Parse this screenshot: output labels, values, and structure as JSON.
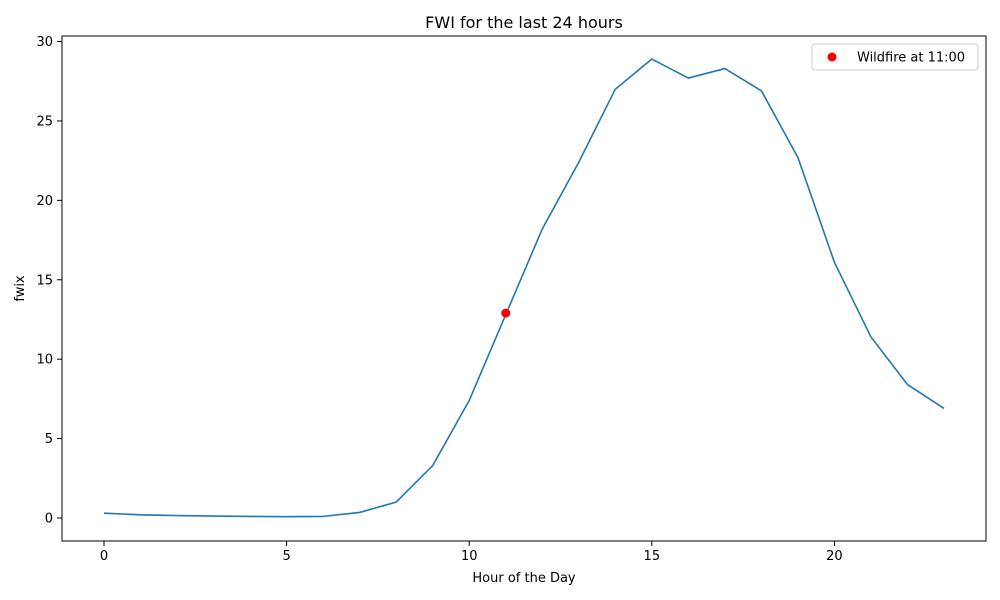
{
  "chart_data": {
    "type": "line",
    "title": "FWI for the last 24 hours",
    "xlabel": "Hour of the Day",
    "ylabel": "fwix",
    "xlim": [
      -1.15,
      24.15
    ],
    "ylim": [
      -1.45,
      30.35
    ],
    "xticks": [
      0,
      5,
      10,
      15,
      20
    ],
    "yticks": [
      0,
      5,
      10,
      15,
      20,
      25,
      30
    ],
    "grid": false,
    "legend_position": "top-right",
    "series": [
      {
        "color": "#1f77b4",
        "x": [
          0,
          1,
          2,
          3,
          4,
          5,
          6,
          7,
          8,
          9,
          10,
          11,
          12,
          13,
          14,
          15,
          16,
          17,
          18,
          19,
          20,
          21,
          22,
          23
        ],
        "y": [
          0.3,
          0.2,
          0.15,
          0.12,
          0.1,
          0.08,
          0.1,
          0.35,
          1.0,
          3.3,
          7.4,
          12.8,
          18.2,
          22.4,
          27.0,
          28.9,
          27.7,
          28.3,
          26.9,
          22.7,
          16.1,
          11.4,
          8.4,
          6.9
        ]
      }
    ],
    "annotations": [
      {
        "label": "Wildfire at 11:00",
        "x": 11,
        "y": 12.9,
        "color": "#ff0000",
        "marker": "circle"
      }
    ]
  }
}
